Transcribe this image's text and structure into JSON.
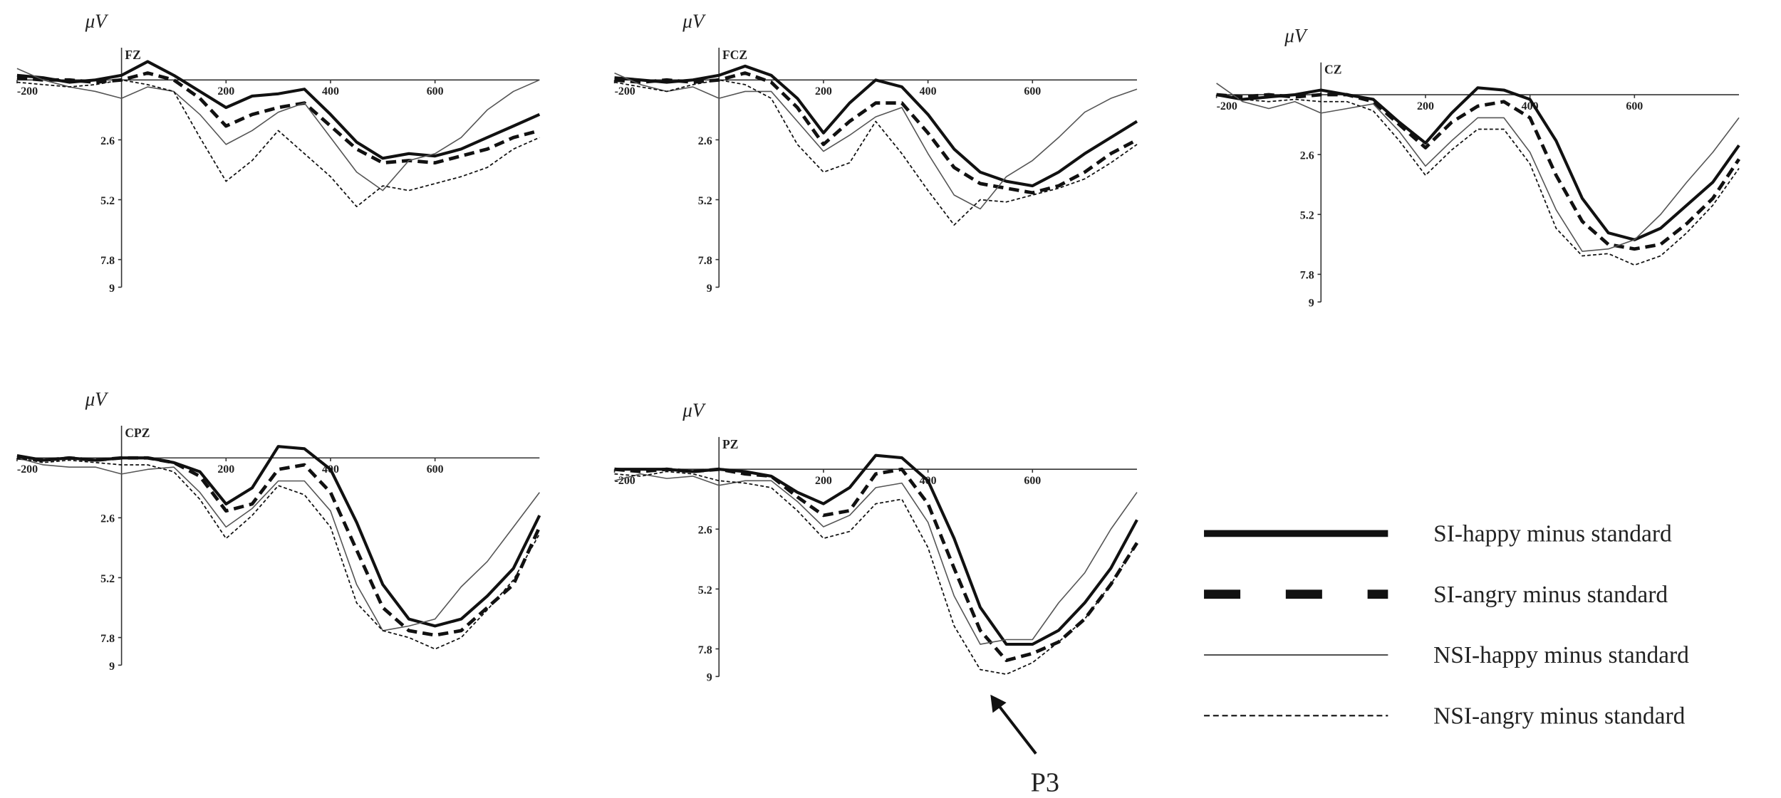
{
  "chart_data": [
    {
      "type": "line",
      "title": "FZ",
      "y_label": "μV",
      "y_inverted": true,
      "x": [
        -200,
        -150,
        -100,
        -50,
        0,
        50,
        100,
        150,
        200,
        250,
        300,
        350,
        400,
        450,
        500,
        550,
        600,
        650,
        700,
        750,
        800
      ],
      "xlim": [
        -200,
        800
      ],
      "xticks": [
        -200,
        200,
        400,
        600
      ],
      "ylim": [
        -1.4,
        9
      ],
      "yticks": [
        2.6,
        5.2,
        7.8,
        9
      ],
      "series": [
        {
          "name": "SI-happy minus standard",
          "color": "#111111",
          "line_style": "thick",
          "values": [
            -0.2,
            -0.1,
            0.1,
            0,
            -0.2,
            -0.8,
            -0.2,
            0.5,
            1.2,
            0.7,
            0.6,
            0.4,
            1.5,
            2.7,
            3.4,
            3.2,
            3.3,
            3.0,
            2.5,
            2.0,
            1.5
          ]
        },
        {
          "name": "SI-angry minus standard",
          "color": "#111111",
          "line_style": "thick-dashed",
          "values": [
            -0.1,
            0,
            0,
            0.1,
            0,
            -0.3,
            0,
            0.8,
            2.0,
            1.5,
            1.2,
            1.0,
            2.0,
            3.0,
            3.6,
            3.5,
            3.6,
            3.3,
            3.0,
            2.5,
            2.2
          ]
        },
        {
          "name": "NSI-happy minus standard",
          "color": "#555555",
          "line_style": "thin",
          "values": [
            -0.5,
            0,
            0.3,
            0.5,
            0.8,
            0.3,
            0.5,
            1.5,
            2.8,
            2.2,
            1.4,
            1.0,
            2.5,
            4.0,
            4.8,
            3.5,
            3.2,
            2.5,
            1.3,
            0.5,
            0.0
          ]
        },
        {
          "name": "NSI-angry minus standard",
          "color": "#111111",
          "line_style": "dotted",
          "values": [
            0.1,
            0.2,
            0.3,
            0.2,
            0,
            0.2,
            0.5,
            2.5,
            4.4,
            3.5,
            2.2,
            3.2,
            4.2,
            5.5,
            4.6,
            4.8,
            4.5,
            4.2,
            3.8,
            3.0,
            2.5
          ]
        }
      ]
    },
    {
      "type": "line",
      "title": "FCZ",
      "y_label": "μV",
      "y_inverted": true,
      "x": [
        -200,
        -150,
        -100,
        -50,
        0,
        50,
        100,
        150,
        200,
        250,
        300,
        350,
        400,
        450,
        500,
        550,
        600,
        650,
        700,
        750,
        800
      ],
      "xlim": [
        -200,
        800
      ],
      "xticks": [
        -200,
        200,
        400,
        600
      ],
      "ylim": [
        -1.4,
        9
      ],
      "yticks": [
        2.6,
        5.2,
        7.8,
        9
      ],
      "series": [
        {
          "name": "SI-happy minus standard",
          "color": "#111111",
          "line_style": "thick",
          "values": [
            -0.1,
            0,
            0.1,
            0,
            -0.2,
            -0.6,
            -0.2,
            0.8,
            2.3,
            1.0,
            0,
            0.3,
            1.5,
            3.0,
            4.0,
            4.4,
            4.6,
            4.0,
            3.2,
            2.5,
            1.8
          ]
        },
        {
          "name": "SI-angry minus standard",
          "color": "#111111",
          "line_style": "thick-dashed",
          "values": [
            0,
            0.1,
            0,
            0.1,
            0,
            -0.3,
            0.1,
            1.2,
            2.8,
            1.8,
            1.0,
            1.0,
            2.3,
            3.8,
            4.5,
            4.7,
            4.9,
            4.6,
            4.0,
            3.2,
            2.6
          ]
        },
        {
          "name": "NSI-happy minus standard",
          "color": "#555555",
          "line_style": "thin",
          "values": [
            -0.3,
            0.2,
            0.5,
            0.3,
            0.8,
            0.5,
            0.5,
            1.8,
            3.1,
            2.4,
            1.6,
            1.2,
            3.2,
            5.0,
            5.6,
            4.2,
            3.5,
            2.5,
            1.4,
            0.8,
            0.4
          ]
        },
        {
          "name": "NSI-angry minus standard",
          "color": "#111111",
          "line_style": "dotted",
          "values": [
            0.1,
            0.3,
            0.5,
            0.2,
            0,
            0.2,
            0.8,
            2.8,
            4.0,
            3.6,
            1.8,
            3.2,
            4.8,
            6.3,
            5.2,
            5.3,
            5.0,
            4.7,
            4.3,
            3.6,
            2.8
          ]
        }
      ]
    },
    {
      "type": "line",
      "title": "CZ",
      "y_label": "μV",
      "y_inverted": true,
      "x": [
        -200,
        -150,
        -100,
        -50,
        0,
        50,
        100,
        150,
        200,
        250,
        300,
        350,
        400,
        450,
        500,
        550,
        600,
        650,
        700,
        750,
        800
      ],
      "xlim": [
        -200,
        800
      ],
      "xticks": [
        -200,
        200,
        400,
        600
      ],
      "ylim": [
        -1.4,
        9
      ],
      "yticks": [
        2.6,
        5.2,
        7.8,
        9
      ],
      "series": [
        {
          "name": "SI-happy minus standard",
          "color": "#111111",
          "line_style": "thick",
          "values": [
            0,
            0.2,
            0.1,
            0,
            -0.2,
            0,
            0.2,
            1.2,
            2.1,
            0.8,
            -0.3,
            -0.2,
            0.2,
            2.0,
            4.5,
            6.0,
            6.3,
            5.8,
            4.8,
            3.8,
            2.2
          ]
        },
        {
          "name": "SI-angry minus standard",
          "color": "#111111",
          "line_style": "thick-dashed",
          "values": [
            0,
            0.1,
            0,
            0.1,
            0,
            0,
            0.3,
            1.3,
            2.3,
            1.2,
            0.5,
            0.3,
            1.0,
            3.5,
            5.5,
            6.5,
            6.7,
            6.5,
            5.6,
            4.5,
            2.8
          ]
        },
        {
          "name": "NSI-happy minus standard",
          "color": "#555555",
          "line_style": "thin",
          "values": [
            -0.5,
            0.3,
            0.6,
            0.3,
            0.8,
            0.6,
            0.4,
            1.6,
            3.1,
            2.0,
            1.0,
            1.0,
            2.5,
            5.0,
            6.8,
            6.7,
            6.3,
            5.2,
            3.8,
            2.5,
            1.0
          ]
        },
        {
          "name": "NSI-angry minus standard",
          "color": "#111111",
          "line_style": "dotted",
          "values": [
            0,
            0.2,
            0.3,
            0.2,
            0.3,
            0.3,
            0.7,
            2.0,
            3.5,
            2.4,
            1.5,
            1.5,
            3.0,
            5.8,
            7.0,
            6.9,
            7.4,
            7.0,
            6.0,
            4.8,
            3.2
          ]
        }
      ]
    },
    {
      "type": "line",
      "title": "CPZ",
      "y_label": "μV",
      "y_inverted": true,
      "x": [
        -200,
        -150,
        -100,
        -50,
        0,
        50,
        100,
        150,
        200,
        250,
        300,
        350,
        400,
        450,
        500,
        550,
        600,
        650,
        700,
        750,
        800
      ],
      "xlim": [
        -200,
        800
      ],
      "xticks": [
        -200,
        200,
        400,
        600
      ],
      "ylim": [
        -1.4,
        9
      ],
      "yticks": [
        2.6,
        5.2,
        7.8,
        9
      ],
      "series": [
        {
          "name": "SI-happy minus standard",
          "color": "#111111",
          "line_style": "thick",
          "values": [
            -0.1,
            0.1,
            0,
            0.1,
            0,
            0,
            0.2,
            0.6,
            2.0,
            1.3,
            -0.5,
            -0.4,
            0.5,
            2.8,
            5.5,
            7.0,
            7.3,
            7.0,
            6.0,
            4.8,
            2.5
          ]
        },
        {
          "name": "SI-angry minus standard",
          "color": "#111111",
          "line_style": "thick-dashed",
          "values": [
            0,
            0.1,
            0,
            0.1,
            0,
            0,
            0.2,
            0.8,
            2.3,
            2.0,
            0.5,
            0.3,
            1.5,
            4.0,
            6.5,
            7.5,
            7.7,
            7.5,
            6.5,
            5.5,
            3.0
          ]
        },
        {
          "name": "NSI-happy minus standard",
          "color": "#555555",
          "line_style": "thin",
          "values": [
            0,
            0.3,
            0.4,
            0.4,
            0.7,
            0.5,
            0.4,
            1.5,
            3.0,
            2.2,
            1.0,
            1.0,
            2.3,
            5.5,
            7.5,
            7.3,
            7.0,
            5.6,
            4.5,
            3.0,
            1.5
          ]
        },
        {
          "name": "NSI-angry minus standard",
          "color": "#111111",
          "line_style": "dotted",
          "values": [
            0,
            0.2,
            0.1,
            0.2,
            0.3,
            0.3,
            0.6,
            1.8,
            3.5,
            2.5,
            1.2,
            1.6,
            3.0,
            6.3,
            7.5,
            7.8,
            8.3,
            7.8,
            6.6,
            5.3,
            3.3
          ]
        }
      ]
    },
    {
      "type": "line",
      "title": "PZ",
      "y_label": "μV",
      "y_inverted": true,
      "annotation": "P3",
      "x": [
        -200,
        -150,
        -100,
        -50,
        0,
        50,
        100,
        150,
        200,
        250,
        300,
        350,
        400,
        450,
        500,
        550,
        600,
        650,
        700,
        750,
        800
      ],
      "xlim": [
        -200,
        800
      ],
      "xticks": [
        -200,
        200,
        400,
        600
      ],
      "ylim": [
        -1.4,
        9
      ],
      "yticks": [
        2.6,
        5.2,
        7.8,
        9
      ],
      "series": [
        {
          "name": "SI-happy minus standard",
          "color": "#111111",
          "line_style": "thick",
          "values": [
            0,
            0,
            0,
            0.1,
            0,
            0.1,
            0.3,
            1.0,
            1.5,
            0.8,
            -0.6,
            -0.5,
            0.5,
            3.0,
            6.0,
            7.6,
            7.6,
            7.0,
            5.8,
            4.3,
            2.2
          ]
        },
        {
          "name": "SI-angry minus standard",
          "color": "#111111",
          "line_style": "thick-dashed",
          "values": [
            0,
            0.1,
            0,
            0.1,
            0,
            0.2,
            0.3,
            1.2,
            2.0,
            1.8,
            0.2,
            0,
            1.5,
            4.3,
            7.0,
            8.3,
            8.0,
            7.5,
            6.5,
            5.0,
            3.2
          ]
        },
        {
          "name": "NSI-happy minus standard",
          "color": "#555555",
          "line_style": "thin",
          "values": [
            0.5,
            0.2,
            0.4,
            0.3,
            0.7,
            0.5,
            0.5,
            1.4,
            2.5,
            2.0,
            0.8,
            0.6,
            2.3,
            5.5,
            7.6,
            7.4,
            7.4,
            5.8,
            4.5,
            2.6,
            1.0
          ]
        },
        {
          "name": "NSI-angry minus standard",
          "color": "#111111",
          "line_style": "dotted",
          "values": [
            0.2,
            0.3,
            0.1,
            0.2,
            0.5,
            0.6,
            0.8,
            1.8,
            3.0,
            2.7,
            1.5,
            1.3,
            3.4,
            6.8,
            8.7,
            8.9,
            8.4,
            7.5,
            6.5,
            5.0,
            3.2
          ]
        }
      ]
    }
  ]
}
